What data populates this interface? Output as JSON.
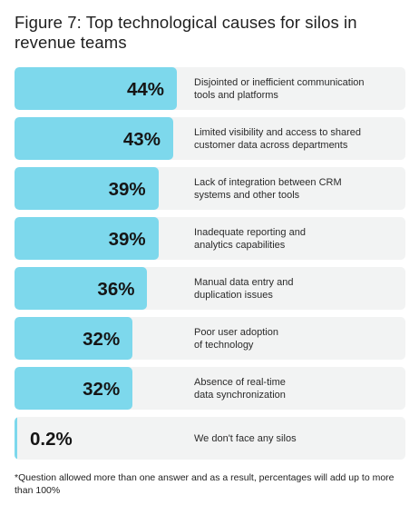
{
  "chart_data": {
    "type": "bar",
    "orientation": "horizontal",
    "title": "Figure 7: Top technological causes for silos in revenue teams",
    "categories": [
      "Disjointed or inefficient communication tools and platforms",
      "Limited visibility and access to shared customer data across departments",
      "Lack of integration between CRM systems and other tools",
      "Inadequate reporting and analytics capabilities",
      "Manual data entry and duplication issues",
      "Poor user adoption of technology",
      "Absence of real-time data synchronization",
      "We don't face any silos"
    ],
    "values": [
      44,
      43,
      39,
      39,
      36,
      32,
      32,
      0.2
    ],
    "value_labels": [
      "44%",
      "43%",
      "39%",
      "39%",
      "36%",
      "32%",
      "32%",
      "0.2%"
    ],
    "xlim": [
      0,
      44
    ],
    "grid": false
  },
  "footnote": "*Question allowed more than one answer and as a result, percentages will add up to more than 100%",
  "colors": {
    "bar": "#7dd8ec",
    "track": "#f2f3f3"
  }
}
